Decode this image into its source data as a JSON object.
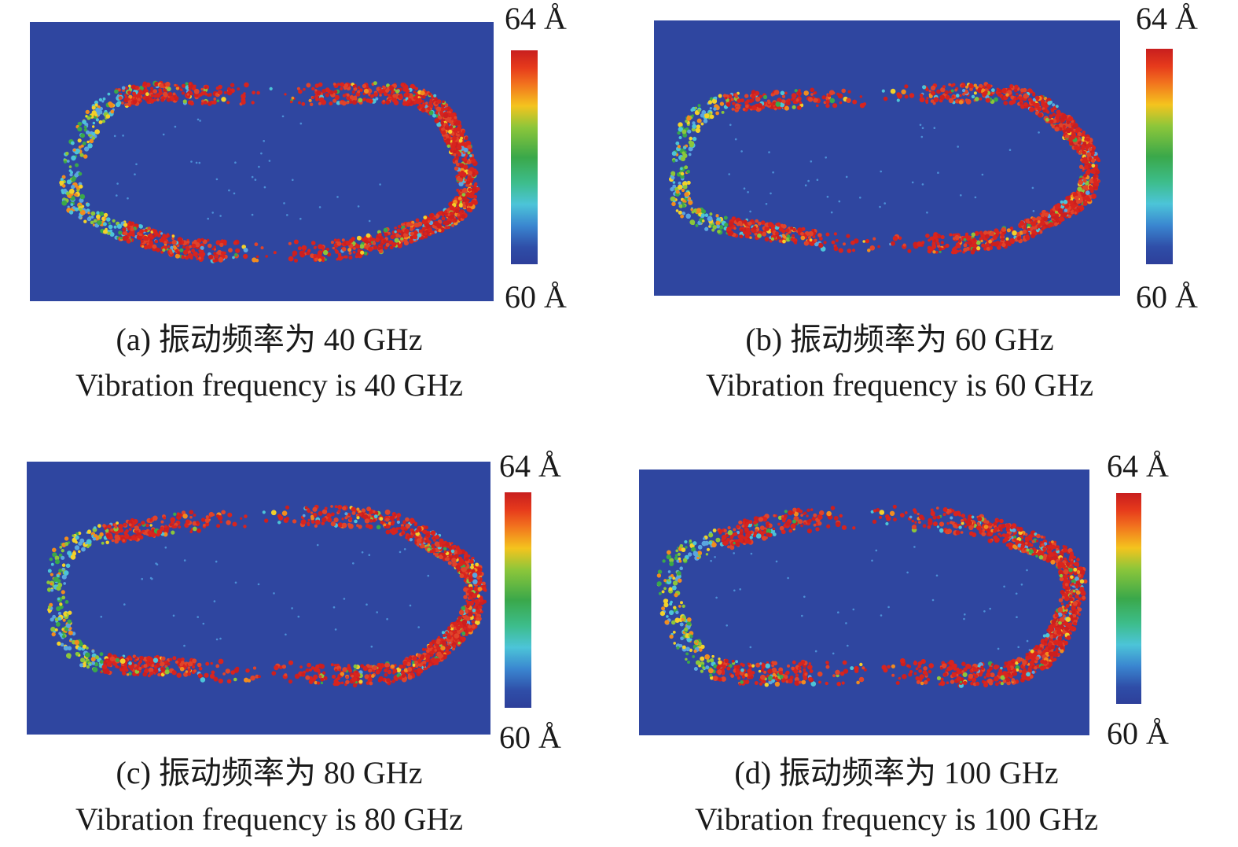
{
  "colorbar": {
    "max_label": "64 Å",
    "min_label": "60 Å",
    "max_value": 64,
    "min_value": 60,
    "unit": "Å",
    "colormap": [
      "#c81e1e",
      "#f2741e",
      "#f4c41e",
      "#8cc63a",
      "#3aa84a",
      "#4cc4d8",
      "#2d3f9a"
    ]
  },
  "background_color": "#2f46a0",
  "panels": [
    {
      "id": "a",
      "caption_cn": "(a) 振动频率为 40 GHz",
      "caption_en": "Vibration frequency is 40 GHz",
      "frequency_ghz": 40
    },
    {
      "id": "b",
      "caption_cn": "(b) 振动频率为 60 GHz",
      "caption_en": "Vibration frequency is 60 GHz",
      "frequency_ghz": 60
    },
    {
      "id": "c",
      "caption_cn": "(c) 振动频率为 80 GHz",
      "caption_en": "Vibration frequency is 80 GHz",
      "frequency_ghz": 80
    },
    {
      "id": "d",
      "caption_cn": "(d) 振动频率为 100 GHz",
      "caption_en": "Vibration frequency is 100 GHz",
      "frequency_ghz": 100
    }
  ]
}
